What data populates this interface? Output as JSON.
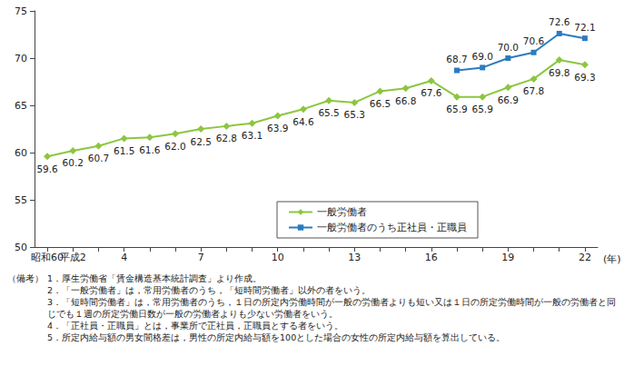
{
  "chart_data": {
    "type": "line",
    "xlabel": "(年)",
    "categories": [
      "昭和60",
      "平成2",
      null,
      "4",
      null,
      null,
      "7",
      null,
      null,
      "10",
      null,
      null,
      "13",
      null,
      null,
      "16",
      null,
      null,
      "19",
      null,
      null,
      "22"
    ],
    "series": [
      {
        "name": "一般労働者",
        "color": "#8cc63f",
        "marker": "diamond",
        "values": [
          59.6,
          60.2,
          60.7,
          61.5,
          61.6,
          62.0,
          62.5,
          62.8,
          63.1,
          63.9,
          64.6,
          65.5,
          65.3,
          66.5,
          66.8,
          67.6,
          65.9,
          65.9,
          66.9,
          67.8,
          69.8,
          69.3
        ],
        "value_labels": [
          "59.6",
          "60.2",
          "60.7",
          "61.5",
          "61.6",
          "62.0",
          "62.5",
          "62.8",
          "63.1",
          "63.9",
          "64.6",
          "65.5",
          "65.3",
          "66.5",
          "66.8",
          "67.6",
          "65.9",
          "65.9",
          "66.9",
          "67.8",
          "69.8",
          "69.3"
        ]
      },
      {
        "name": "一般労働者のうち正社員・正職員",
        "color": "#2b7bc0",
        "marker": "square",
        "values": [
          null,
          null,
          null,
          null,
          null,
          null,
          null,
          null,
          null,
          null,
          null,
          null,
          null,
          null,
          null,
          null,
          68.7,
          69.0,
          70.0,
          70.6,
          72.6,
          72.1
        ],
        "value_labels": [
          null,
          null,
          null,
          null,
          null,
          null,
          null,
          null,
          null,
          null,
          null,
          null,
          null,
          null,
          null,
          null,
          "68.7",
          "69.0",
          "70.0",
          "70.6",
          "72.6",
          "72.1"
        ]
      }
    ],
    "ylim": [
      50,
      75
    ],
    "yticks": [
      50,
      55,
      60,
      65,
      70,
      75
    ],
    "grid": false,
    "legend": "lower right",
    "data_labels": true,
    "notes_title": "（備考）",
    "notes": [
      "1．厚生労働省「賃金構造基本統計調査」より作成。",
      "2．「一般労働者」は，常用労働者のうち，「短時間労働者」以外の者をいう。",
      "3．「短時間労働者」は，常用労働者のうち，１日の所定内労働時間が一般の労働者よりも短い又は１日の所定労働時間が一般の労働者と同じでも１週の所定労働日数が一般の労働者よりも少ない労働者をいう。",
      "4．「正社員・正職員」とは，事業所で正社員，正職員とする者をいう。",
      "5．所定内給与額の男女間格差は，男性の所定内給与額を100とした場合の女性の所定内給与額を算出している。"
    ]
  }
}
